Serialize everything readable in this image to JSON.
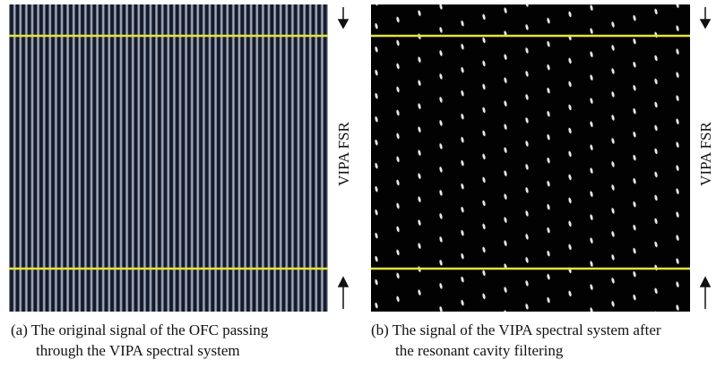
{
  "panels": [
    {
      "side_label": "VIPA FSR",
      "caption": [
        "(a) The original signal of the OFC passing",
        "through the VIPA spectral system"
      ]
    },
    {
      "side_label": "VIPA FSR",
      "caption": [
        "(b) The signal of the VIPA spectral system after",
        "the resonant cavity filtering"
      ]
    }
  ]
}
